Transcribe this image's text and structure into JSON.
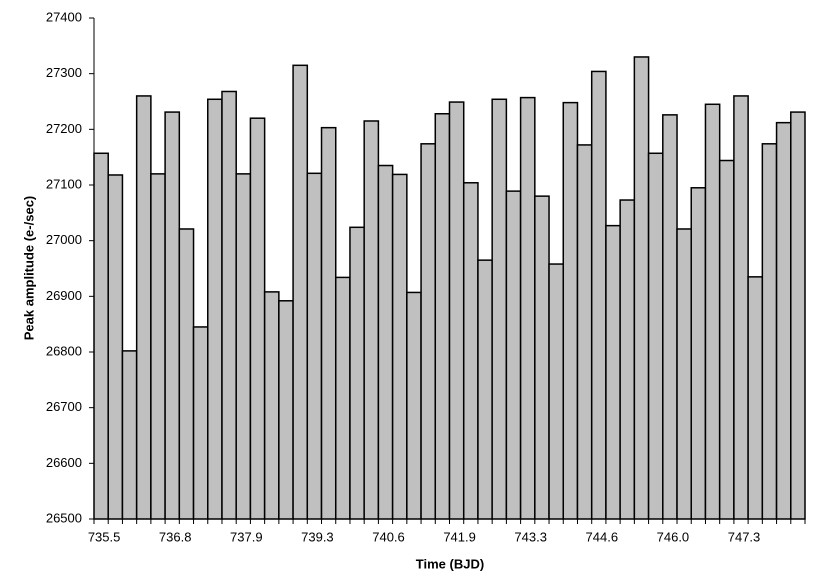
{
  "chart_data": {
    "type": "bar",
    "x_label": "Time (BJD)",
    "y_label": "Peak amplitude (e-/sec)",
    "categories": [
      "735.5",
      null,
      null,
      null,
      null,
      "736.8",
      null,
      null,
      null,
      null,
      "737.9",
      null,
      null,
      null,
      null,
      "739.3",
      null,
      null,
      null,
      null,
      "740.6",
      null,
      null,
      null,
      null,
      "741.9",
      null,
      null,
      null,
      null,
      "743.3",
      null,
      null,
      null,
      null,
      "744.6",
      null,
      null,
      null,
      null,
      "746.0",
      null,
      null,
      null,
      null,
      "747.3",
      null,
      null,
      null,
      null
    ],
    "values": [
      27157,
      27118,
      26802,
      27260,
      27120,
      27231,
      27021,
      26845,
      27254,
      27268,
      27120,
      27220,
      26908,
      26892,
      27315,
      27121,
      27203,
      26934,
      27024,
      27215,
      27135,
      27119,
      26907,
      27174,
      27228,
      27249,
      27104,
      26965,
      27254,
      27089,
      27257,
      27080,
      26958,
      27248,
      27172,
      27304,
      27027,
      27073,
      27330,
      27157,
      27226,
      27021,
      27095,
      27245,
      27144,
      27260,
      26935,
      27174,
      27212,
      27231
    ],
    "color": "#c0c0c0",
    "ylim": [
      26500,
      27400
    ],
    "yticks": [
      26500,
      26600,
      26700,
      26800,
      26900,
      27000,
      27100,
      27200,
      27300,
      27400
    ],
    "grid": false
  }
}
